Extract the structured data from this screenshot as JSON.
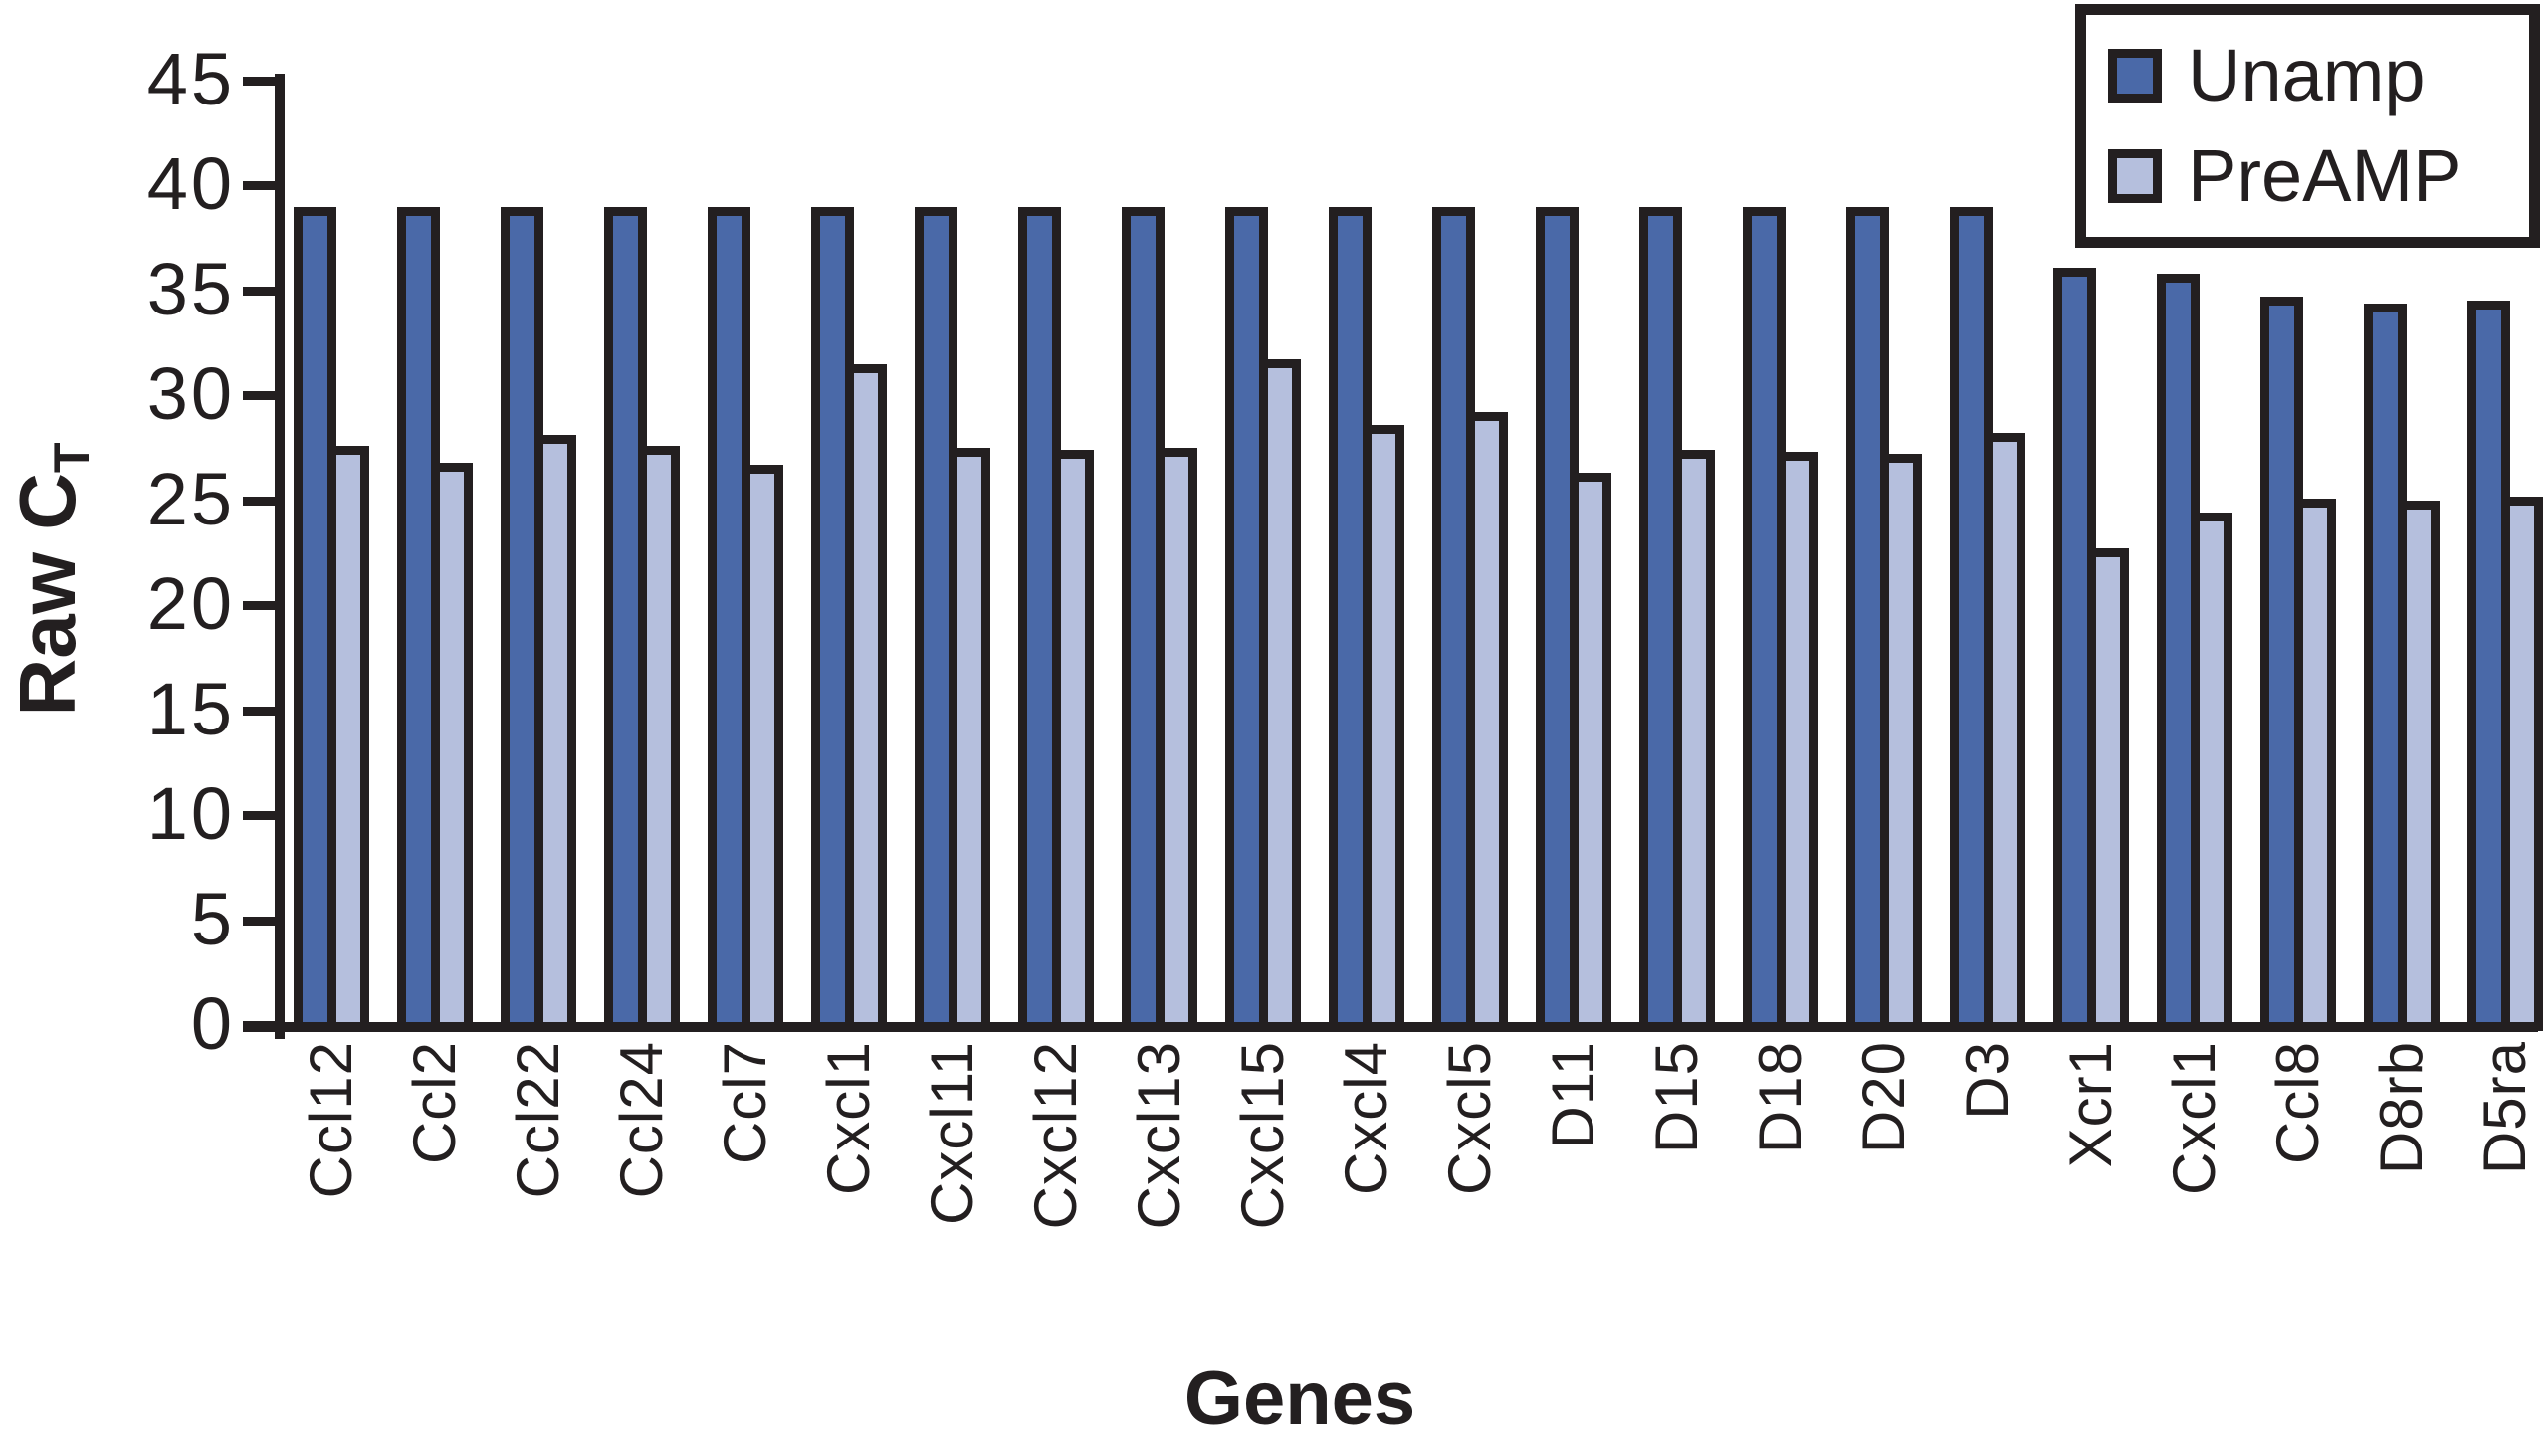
{
  "chart_data": {
    "type": "bar",
    "title": "",
    "xlabel": "Genes",
    "ylabel": {
      "text": "Raw C",
      "subscript": "T"
    },
    "ylim": [
      0,
      45
    ],
    "yticks": [
      0,
      5,
      10,
      15,
      20,
      25,
      30,
      35,
      40,
      45
    ],
    "grid": false,
    "legend_position": "top-right",
    "bar_outline_color": "#231f20",
    "categories": [
      "Ccl12",
      "Ccl2",
      "Ccl22",
      "Ccl24",
      "Ccl7",
      "Cxcl1",
      "Cxcl11",
      "Cxcl12",
      "Cxcl13",
      "Cxcl15",
      "Cxcl4",
      "Cxcl5",
      "D11",
      "D15",
      "D18",
      "D20",
      "D3",
      "Xcr1",
      "Cxcl1",
      "Ccl8",
      "D8rb",
      "D5ra"
    ],
    "series": [
      {
        "name": "Unamp",
        "color": "#4a69a8",
        "values": [
          39,
          39,
          39,
          39,
          39,
          39,
          39,
          39,
          39,
          39,
          39,
          39,
          39,
          39,
          39,
          39,
          39,
          36.1,
          35.8,
          34.7,
          34.4,
          34.5
        ]
      },
      {
        "name": "PreAMP",
        "color": "#b5bfdd",
        "values": [
          27.6,
          26.8,
          28.1,
          27.6,
          26.7,
          31.5,
          27.5,
          27.4,
          27.5,
          31.7,
          28.6,
          29.2,
          26.3,
          27.4,
          27.3,
          27.2,
          28.2,
          22.7,
          24.4,
          25.1,
          25.0,
          25.2
        ]
      }
    ]
  },
  "legend": {
    "items": [
      {
        "label": "Unamp",
        "color": "#4a69a8"
      },
      {
        "label": "PreAMP",
        "color": "#b5bfdd"
      }
    ]
  }
}
